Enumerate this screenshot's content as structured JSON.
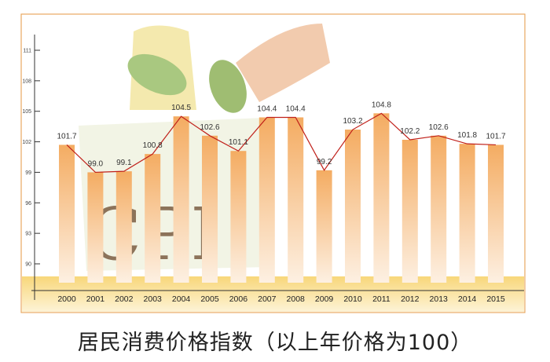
{
  "chart_data": {
    "type": "bar",
    "title": "居民消费价格指数（以上年价格为100）",
    "illustration_text": "CPI",
    "categories": [
      "2000",
      "2001",
      "2002",
      "2003",
      "2004",
      "2005",
      "2006",
      "2007",
      "2008",
      "2009",
      "2010",
      "2011",
      "2012",
      "2013",
      "2014",
      "2015"
    ],
    "values": [
      101.7,
      99.0,
      99.1,
      100.8,
      104.5,
      102.6,
      101.1,
      104.4,
      104.4,
      99.2,
      103.2,
      104.8,
      102.2,
      102.6,
      101.8,
      101.7
    ],
    "value_labels": [
      "101.7",
      "99.0",
      "99.1",
      "100.8",
      "104.5",
      "102.6",
      "101.1",
      "104.4",
      "104.4",
      "99.2",
      "103.2",
      "104.8",
      "102.2",
      "102.6",
      "101.8",
      "101.7"
    ],
    "yticks": [
      90,
      93,
      96,
      99,
      102,
      105,
      108,
      111
    ],
    "ylim": [
      88.5,
      113
    ],
    "xlabel": "",
    "ylabel": "",
    "overlay_line": true,
    "colors": {
      "bar": "#f5b06a",
      "line": "#c0201a",
      "frame": "#e8a860",
      "band": "#f8dc8a"
    }
  }
}
